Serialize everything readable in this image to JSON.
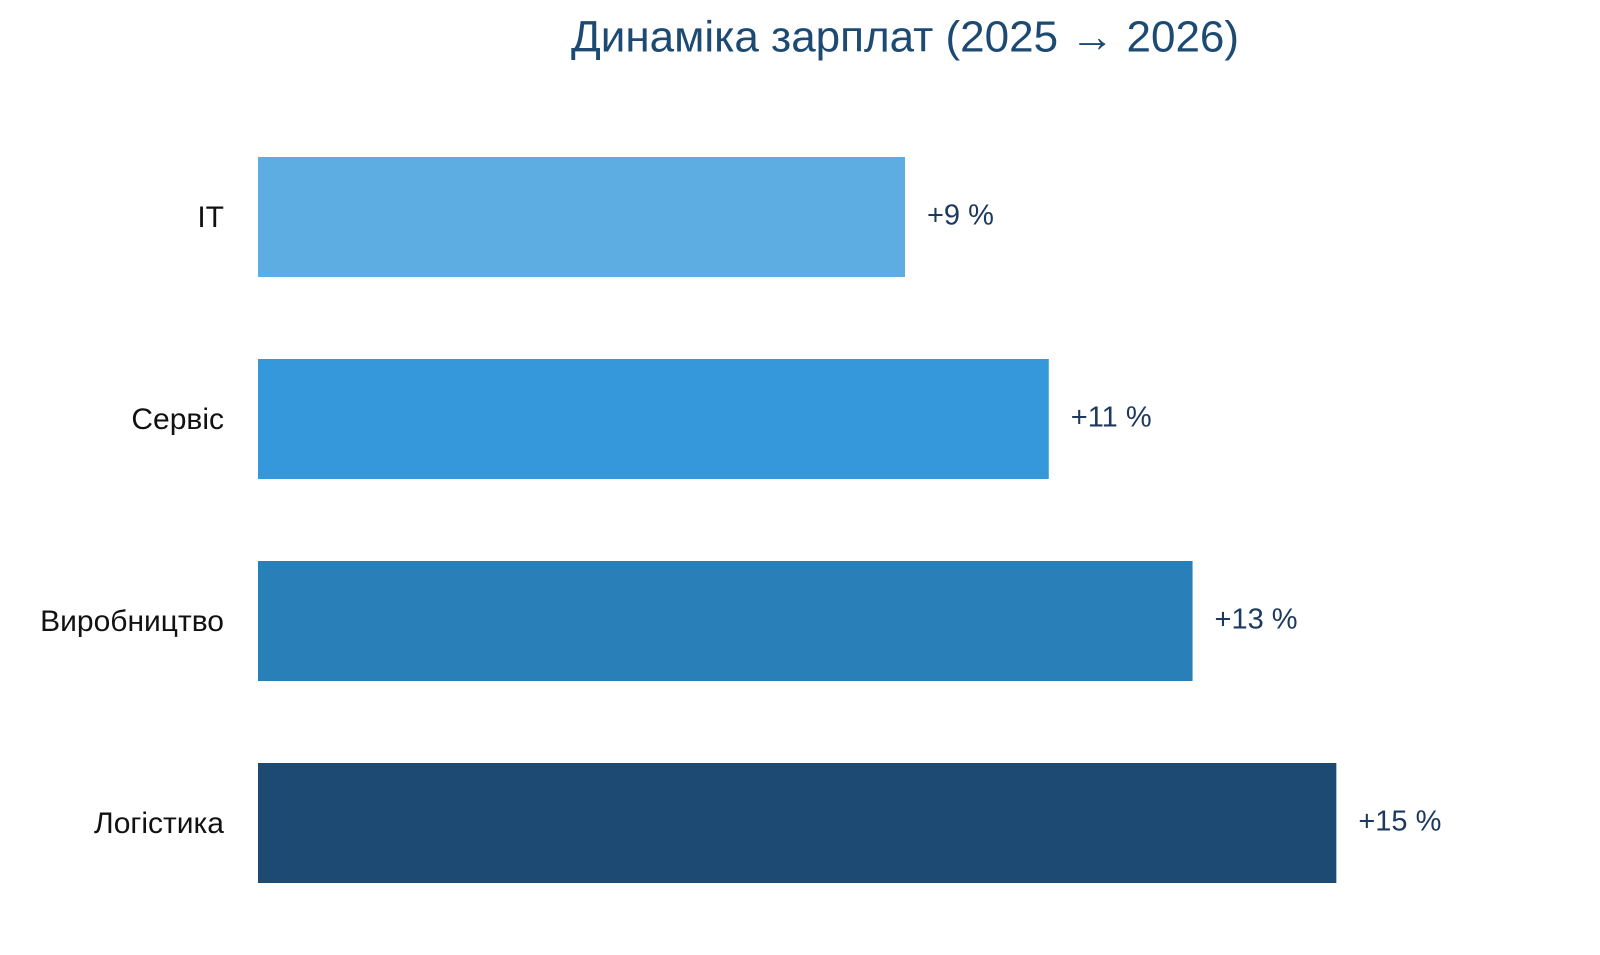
{
  "chart_data": {
    "type": "bar",
    "orientation": "horizontal",
    "title": "Динаміка зарплат (2025 → 2026)",
    "categories": [
      "IT",
      "Сервіс",
      "Виробництво",
      "Логістика"
    ],
    "values": [
      9,
      11,
      13,
      15
    ],
    "value_labels": [
      "+9 %",
      "+11 %",
      "+13 %",
      "+15 %"
    ],
    "colors": [
      "#5dade2",
      "#3498db",
      "#2980b9",
      "#1c4a72"
    ],
    "xlim": [
      0,
      18
    ]
  }
}
